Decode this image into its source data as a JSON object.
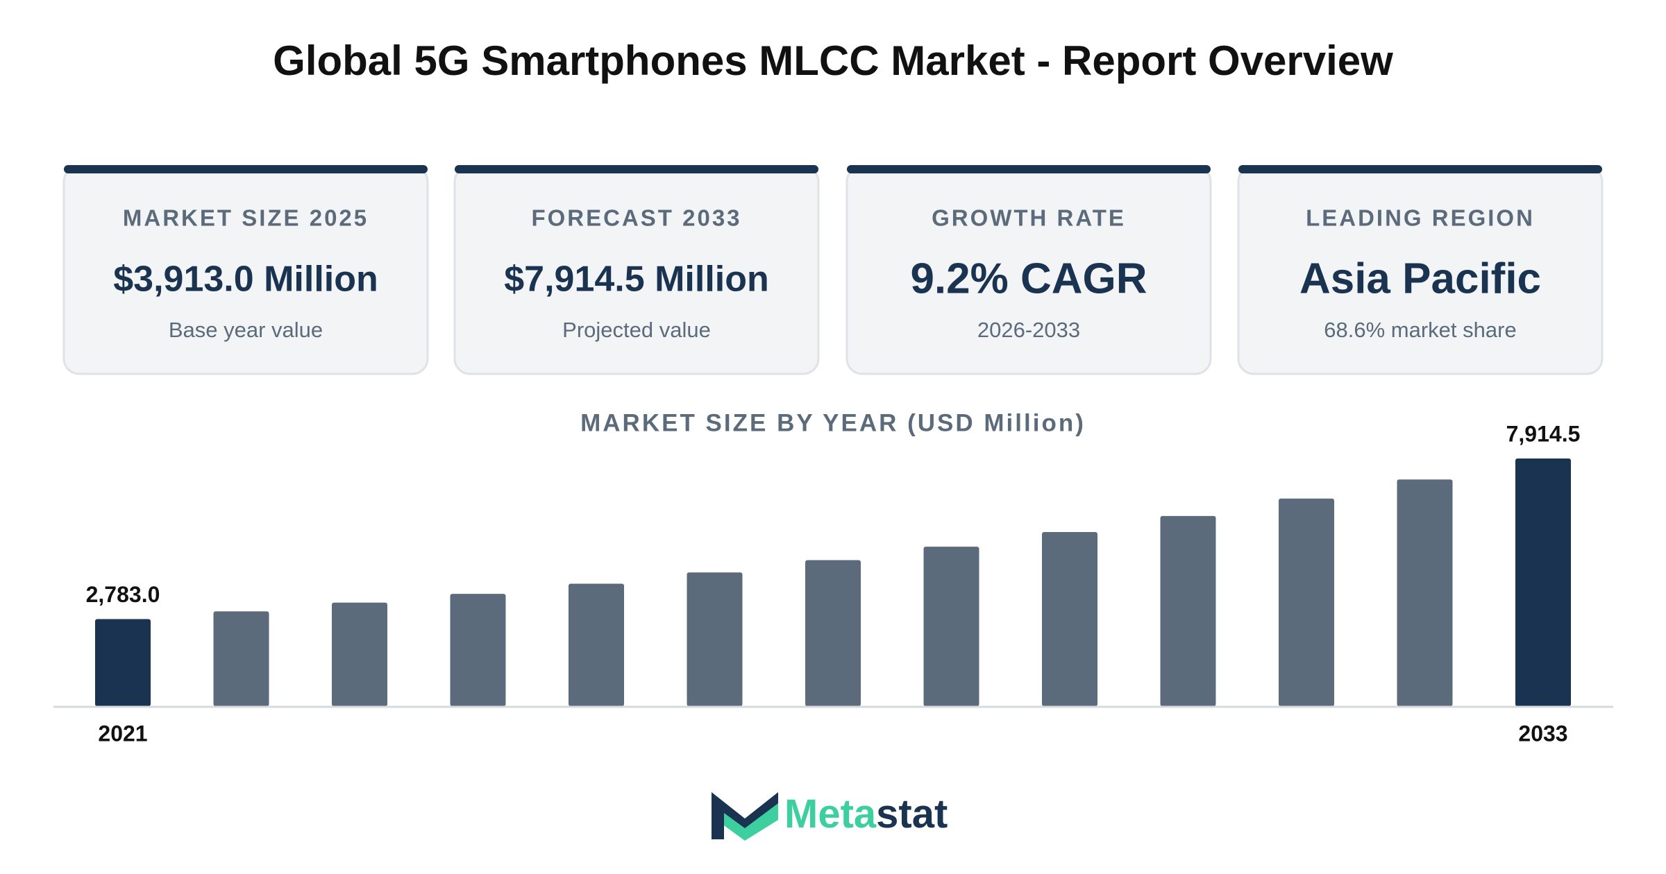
{
  "title": "Global 5G Smartphones MLCC Market - Report Overview",
  "cards": [
    {
      "label": "MARKET SIZE 2025",
      "value": "$3,913.0 Million",
      "sub": "Base year value"
    },
    {
      "label": "FORECAST 2033",
      "value": "$7,914.5 Million",
      "sub": "Projected value"
    },
    {
      "label": "GROWTH RATE",
      "value": "9.2% CAGR",
      "sub": "2026-2033"
    },
    {
      "label": "LEADING REGION",
      "value": "Asia Pacific",
      "sub": "68.6% market share"
    }
  ],
  "chart_data": {
    "type": "bar",
    "title": "MARKET SIZE BY YEAR (USD Million)",
    "categories": [
      "2021",
      null,
      null,
      null,
      null,
      null,
      null,
      null,
      null,
      null,
      null,
      null,
      "2033"
    ],
    "values": [
      2783.0,
      3030,
      3310,
      3590,
      3913.0,
      4273,
      4666,
      5095,
      5564,
      6076,
      6635,
      7245,
      7914.5
    ],
    "value_labels": [
      "2,783.0",
      null,
      null,
      null,
      null,
      null,
      null,
      null,
      null,
      null,
      null,
      null,
      "7,914.5"
    ],
    "colors": [
      "#1a3350",
      "#5b6b7b",
      "#5b6b7b",
      "#5b6b7b",
      "#5b6b7b",
      "#5b6b7b",
      "#5b6b7b",
      "#5b6b7b",
      "#5b6b7b",
      "#5b6b7b",
      "#5b6b7b",
      "#5b6b7b",
      "#1a3350"
    ]
  },
  "logo": {
    "parts": [
      "Meta",
      "stat"
    ]
  }
}
